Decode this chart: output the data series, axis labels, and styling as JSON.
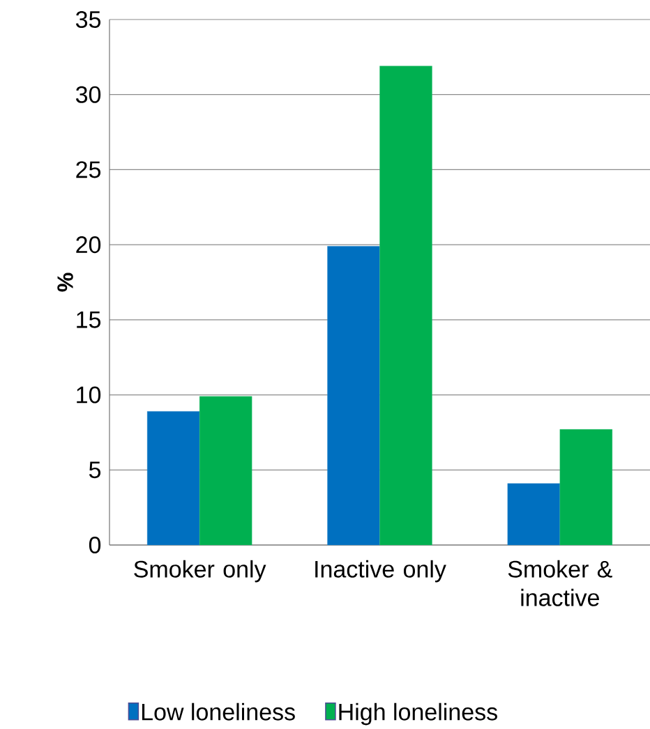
{
  "chart_data": {
    "type": "bar",
    "ylabel": "%",
    "categories": [
      "Smoker only",
      "Inactive only",
      "Smoker & inactive"
    ],
    "series": [
      {
        "name": "Low loneliness",
        "color": "#0070c0",
        "values": [
          8.9,
          19.9,
          4.1
        ]
      },
      {
        "name": "High loneliness",
        "color": "#00b050",
        "values": [
          9.9,
          31.9,
          7.7
        ]
      }
    ],
    "ylim": [
      0,
      35
    ],
    "yticks": [
      0,
      5,
      10,
      15,
      20,
      25,
      30,
      35
    ],
    "grid": "y",
    "legend": "bottom"
  }
}
